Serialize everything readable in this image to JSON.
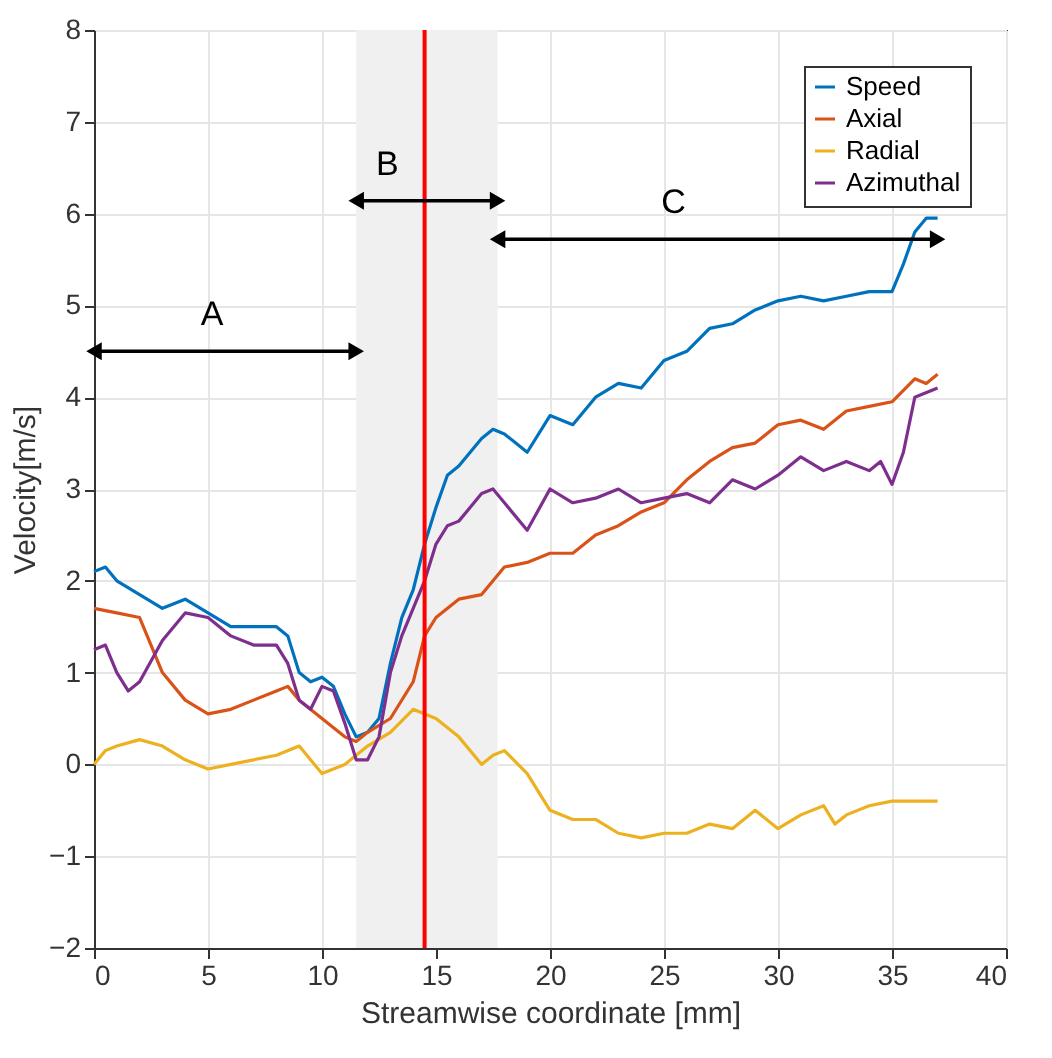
{
  "chart_data": {
    "type": "line",
    "xlabel": "Streamwise coordinate [mm]",
    "ylabel": "Velocity[m/s]",
    "xlim": [
      0,
      40
    ],
    "ylim": [
      -2,
      8
    ],
    "xticks": [
      0,
      5,
      10,
      15,
      20,
      25,
      30,
      35,
      40
    ],
    "yticks": [
      -2,
      -1,
      0,
      1,
      2,
      3,
      4,
      5,
      6,
      7,
      8
    ],
    "grid": true,
    "legend": "top right",
    "line_style": "solid",
    "marker": "none",
    "series": [
      {
        "name": "Speed",
        "color": "#0072bd",
        "x": [
          0,
          0.5,
          1,
          2,
          3,
          3.5,
          4,
          5,
          6,
          7,
          8,
          8.5,
          9,
          9.5,
          10,
          10.5,
          11,
          11.5,
          12,
          12.5,
          13,
          13.5,
          14,
          14.5,
          15,
          15.5,
          16,
          17,
          17.5,
          18,
          19,
          20,
          21,
          22,
          23,
          24,
          25,
          26,
          27,
          28,
          29,
          30,
          31,
          32,
          33,
          34,
          35,
          35.5,
          36,
          36.5,
          37
        ],
        "values": [
          2.1,
          2.15,
          2.0,
          1.85,
          1.7,
          1.75,
          1.8,
          1.65,
          1.5,
          1.5,
          1.5,
          1.4,
          1.0,
          0.9,
          0.95,
          0.85,
          0.55,
          0.3,
          0.35,
          0.5,
          1.1,
          1.6,
          1.9,
          2.4,
          2.8,
          3.15,
          3.25,
          3.55,
          3.65,
          3.6,
          3.4,
          3.8,
          3.7,
          4.0,
          4.15,
          4.1,
          4.4,
          4.5,
          4.75,
          4.8,
          4.95,
          5.05,
          5.1,
          5.05,
          5.1,
          5.15,
          5.15,
          5.45,
          5.8,
          5.95,
          5.95
        ]
      },
      {
        "name": "Axial",
        "color": "#d95319",
        "x": [
          0,
          1,
          2,
          2.5,
          3,
          4,
          5,
          6,
          7,
          8,
          8.5,
          9,
          10,
          11,
          11.5,
          12,
          13,
          14,
          14.5,
          15,
          16,
          17,
          17.5,
          18,
          19,
          20,
          21,
          22,
          23,
          24,
          25,
          26,
          27,
          28,
          29,
          30,
          31,
          32,
          33,
          34,
          35,
          36,
          36.5,
          37
        ],
        "values": [
          1.7,
          1.65,
          1.6,
          1.3,
          1.0,
          0.7,
          0.55,
          0.6,
          0.7,
          0.8,
          0.85,
          0.7,
          0.5,
          0.3,
          0.25,
          0.35,
          0.5,
          0.9,
          1.4,
          1.6,
          1.8,
          1.85,
          2.0,
          2.15,
          2.2,
          2.3,
          2.3,
          2.5,
          2.6,
          2.75,
          2.85,
          3.1,
          3.3,
          3.45,
          3.5,
          3.7,
          3.75,
          3.65,
          3.85,
          3.9,
          3.95,
          4.2,
          4.15,
          4.25
        ]
      },
      {
        "name": "Radial",
        "color": "#edb120",
        "x": [
          0,
          0.5,
          1,
          2,
          3,
          4,
          5,
          6,
          7,
          8,
          9,
          10,
          11,
          12,
          13,
          14,
          15,
          16,
          17,
          17.5,
          18,
          19,
          20,
          21,
          22,
          23,
          24,
          25,
          26,
          27,
          28,
          29,
          30,
          31,
          32,
          32.5,
          33,
          34,
          35,
          36,
          37
        ],
        "values": [
          0.0,
          0.15,
          0.2,
          0.27,
          0.2,
          0.05,
          -0.05,
          0.0,
          0.05,
          0.1,
          0.2,
          -0.1,
          0.0,
          0.2,
          0.35,
          0.6,
          0.5,
          0.3,
          0.0,
          0.1,
          0.15,
          -0.1,
          -0.5,
          -0.6,
          -0.6,
          -0.75,
          -0.8,
          -0.75,
          -0.75,
          -0.65,
          -0.7,
          -0.5,
          -0.7,
          -0.55,
          -0.45,
          -0.65,
          -0.55,
          -0.45,
          -0.4,
          -0.4,
          -0.4
        ]
      },
      {
        "name": "Azimuthal",
        "color": "#7e2f8e",
        "x": [
          0,
          0.5,
          1,
          1.5,
          2,
          3,
          4,
          5,
          6,
          7,
          8,
          8.5,
          9,
          9.5,
          10,
          10.5,
          11,
          11.5,
          12,
          12.5,
          13,
          13.5,
          14,
          14.5,
          15,
          15.5,
          16,
          17,
          17.5,
          18,
          19,
          20,
          21,
          22,
          23,
          24,
          25,
          26,
          27,
          28,
          29,
          30,
          31,
          32,
          33,
          34,
          34.5,
          35,
          35.5,
          36,
          37
        ],
        "values": [
          1.25,
          1.3,
          1.0,
          0.8,
          0.9,
          1.35,
          1.65,
          1.6,
          1.4,
          1.3,
          1.3,
          1.1,
          0.7,
          0.6,
          0.85,
          0.8,
          0.45,
          0.05,
          0.05,
          0.3,
          1.0,
          1.4,
          1.7,
          2.0,
          2.4,
          2.6,
          2.65,
          2.95,
          3.0,
          2.85,
          2.55,
          3.0,
          2.85,
          2.9,
          3.0,
          2.85,
          2.9,
          2.95,
          2.85,
          3.1,
          3.0,
          3.15,
          3.35,
          3.2,
          3.3,
          3.2,
          3.3,
          3.05,
          3.4,
          4.0,
          4.1
        ]
      }
    ],
    "bands": [
      {
        "axis": "x",
        "from": 11.5,
        "to": 17.7,
        "color": "#f0f0f0"
      }
    ],
    "ref_lines": [
      {
        "axis": "x",
        "value": 14.5,
        "color": "#ff0000",
        "line_style": "solid"
      }
    ],
    "annotations": [
      "A",
      "B",
      "C"
    ]
  }
}
